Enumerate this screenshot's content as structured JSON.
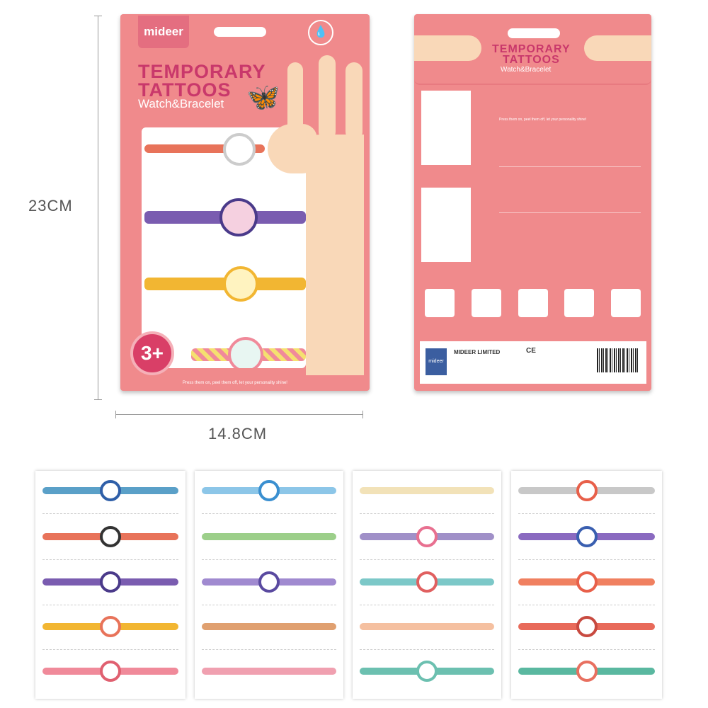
{
  "dimensions": {
    "height_label": "23CM",
    "width_label": "14.8CM"
  },
  "front": {
    "brand": "mideer",
    "title_line1": "TEMPORARY",
    "title_line2": "TATTOOS",
    "subtitle": "Watch&Bracelet",
    "age": "3+",
    "tagline": "Press them on, peel them off, let your personality shine!",
    "icons": [
      "water-drop-icon",
      "butterfly-icon",
      "hand-icon"
    ]
  },
  "back": {
    "title_line1": "TEMPORARY",
    "title_line2": "TATTOOS",
    "subtitle": "Watch&Bracelet",
    "company": "MIDEER LIMITED",
    "logo": "mideer",
    "marks": "CE"
  },
  "colors": {
    "package": "#f08a8c",
    "title": "#c9386b",
    "logo_bg": "#e46e80",
    "age_badge": "#d93f67"
  },
  "sheets": [
    {
      "items": [
        {
          "band": "#5aa0c8",
          "face": "#2f5fa8"
        },
        {
          "band": "#e8735a",
          "face": "#333333"
        },
        {
          "band": "#7a5cb0",
          "face": "#4a3a8a"
        },
        {
          "band": "#f2b632",
          "face": "#e8735a"
        },
        {
          "band": "#f08a9a",
          "face": "#e06070"
        }
      ]
    },
    {
      "items": [
        {
          "band": "#8cc6e8",
          "face": "#3a8fd0"
        },
        {
          "band": "#9ccf8a",
          "face": null
        },
        {
          "band": "#a08ad0",
          "face": "#5a4aa0"
        },
        {
          "band": "#e0a070",
          "face": null
        },
        {
          "band": "#f0a0b0",
          "face": null
        }
      ]
    },
    {
      "items": [
        {
          "band": "#f2e2b8",
          "face": null
        },
        {
          "band": "#a090c8",
          "face": "#e87090"
        },
        {
          "band": "#7cc8c8",
          "face": "#e06060"
        },
        {
          "band": "#f5c0a0",
          "face": null
        },
        {
          "band": "#6cc0b0",
          "face": "#6cc0b0"
        }
      ]
    },
    {
      "items": [
        {
          "band": "#c8c8c8",
          "face": "#e8604a"
        },
        {
          "band": "#8a6ac0",
          "face": "#3a5fb0"
        },
        {
          "band": "#f08060",
          "face": "#e8604a"
        },
        {
          "band": "#e86a5a",
          "face": "#c84a40"
        },
        {
          "band": "#5ab8a0",
          "face": "#e87060"
        }
      ]
    }
  ]
}
